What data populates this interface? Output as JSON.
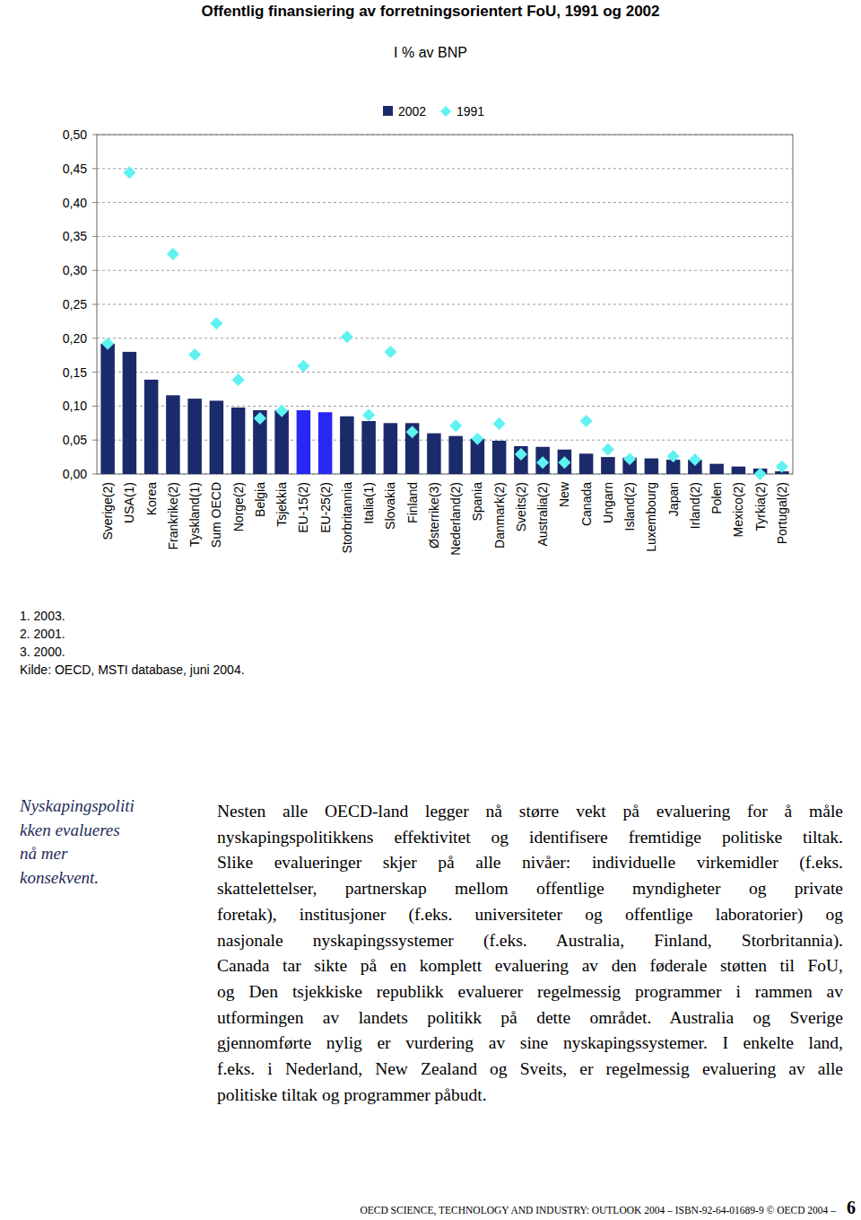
{
  "chart_data": {
    "type": "bar",
    "title": "Offentlig finansiering av forretningsorientert FoU, 1991 og 2002",
    "subtitle": "I % av BNP",
    "categories": [
      "Sverige(2)",
      "USA(1)",
      "Korea",
      "Frankrike(2)",
      "Tyskland(1)",
      "Sum OECD",
      "Norge(2)",
      "Belgia",
      "Tsjekkia",
      "EU-15(2)",
      "EU-25(2)",
      "Storbritannia",
      "Italia(1)",
      "Slovakia",
      "Finland",
      "Østerrike(3)",
      "Nederland(2)",
      "Spania",
      "Danmark(2)",
      "Sveits(2)",
      "Australia(2)",
      "New",
      "Canada",
      "Ungarn",
      "Island(2)",
      "Luxembourg",
      "Japan",
      "Irland(2)",
      "Polen",
      "Mexico(2)",
      "Tyrkia(2)",
      "Portugal(2)"
    ],
    "series": [
      {
        "name": "2002",
        "type": "bar",
        "color": "#1b2a6b",
        "colors": [
          "#1b2a6b",
          "#1b2a6b",
          "#1b2a6b",
          "#1b2a6b",
          "#1b2a6b",
          "#1b2a6b",
          "#1b2a6b",
          "#1b2a6b",
          "#1b2a6b",
          "#2828f5",
          "#2828f5",
          "#1b2a6b",
          "#1b2a6b",
          "#1b2a6b",
          "#1b2a6b",
          "#1b2a6b",
          "#1b2a6b",
          "#1b2a6b",
          "#1b2a6b",
          "#1b2a6b",
          "#1b2a6b",
          "#1b2a6b",
          "#1b2a6b",
          "#1b2a6b",
          "#1b2a6b",
          "#1b2a6b",
          "#1b2a6b",
          "#1b2a6b",
          "#1b2a6b",
          "#1b2a6b",
          "#1b2a6b",
          "#1b2a6b"
        ],
        "values": [
          0.192,
          0.18,
          0.139,
          0.116,
          0.111,
          0.108,
          0.098,
          0.094,
          0.094,
          0.094,
          0.091,
          0.085,
          0.078,
          0.075,
          0.075,
          0.06,
          0.056,
          0.052,
          0.049,
          0.041,
          0.04,
          0.036,
          0.03,
          0.025,
          0.024,
          0.023,
          0.021,
          0.021,
          0.015,
          0.011,
          0.008,
          0.004
        ]
      },
      {
        "name": "1991",
        "type": "scatter",
        "marker": "diamond",
        "color": "#5ff2f2",
        "values": [
          0.192,
          0.444,
          null,
          0.324,
          0.176,
          0.222,
          0.139,
          0.082,
          0.093,
          0.159,
          null,
          0.202,
          0.087,
          0.18,
          0.062,
          null,
          0.071,
          0.052,
          0.074,
          0.029,
          0.017,
          0.017,
          0.078,
          0.036,
          0.022,
          null,
          0.026,
          0.021,
          null,
          null,
          0.0,
          0.011
        ]
      }
    ],
    "ylim": [
      0,
      0.5
    ],
    "yticks": [
      {
        "value": 0,
        "label": "0,00"
      },
      {
        "value": 0.05,
        "label": "0,05"
      },
      {
        "value": 0.1,
        "label": "0,10"
      },
      {
        "value": 0.15,
        "label": "0,15"
      },
      {
        "value": 0.2,
        "label": "0,20"
      },
      {
        "value": 0.25,
        "label": "0,25"
      },
      {
        "value": 0.3,
        "label": "0,30"
      },
      {
        "value": 0.35,
        "label": "0,35"
      },
      {
        "value": 0.4,
        "label": "0,40"
      },
      {
        "value": 0.45,
        "label": "0,45"
      },
      {
        "value": 0.5,
        "label": "0,50"
      }
    ],
    "grid": true,
    "legend": "top",
    "annotations": [
      "1. 2003.",
      "2. 2001.",
      "3. 2000.",
      "Kilde: OECD, MSTI database, juni 2004."
    ]
  },
  "document": {
    "sidebar": [
      "Nyskapingspoliti",
      "kken evalueres",
      "nå mer",
      "konsekvent."
    ],
    "paragraph": [
      "Nesten alle OECD-land legger nå større vekt på evaluering for å måle",
      "nyskapingspolitikkens effektivitet og identifisere fremtidige politiske tiltak.",
      "Slike evalueringer skjer på alle nivåer: individuelle virkemidler (f.eks.",
      "skattelettelser, partnerskap mellom offentlige myndigheter og private",
      "foretak), institusjoner (f.eks. universiteter og offentlige laboratorier) og",
      "nasjonale nyskapingssystemer (f.eks. Australia, Finland, Storbritannia).",
      "Canada tar sikte på en komplett evaluering av den føderale støtten til FoU,",
      "og Den tsjekkiske republikk evaluerer regelmessig programmer i rammen av",
      "utformingen av landets politikk på dette området. Australia og Sverige",
      "gjennomførte nylig er vurdering av sine nyskapingssystemer. I enkelte land,",
      "f.eks. i Nederland, New Zealand og Sveits, er regelmessig evaluering av alle",
      "politiske tiltak og programmer påbudt."
    ],
    "footer": {
      "text": "OECD SCIENCE, TECHNOLOGY AND INDUSTRY: OUTLOOK 2004 – ISBN-92-64-01689-9 © OECD 2004 –",
      "page": 6
    }
  }
}
